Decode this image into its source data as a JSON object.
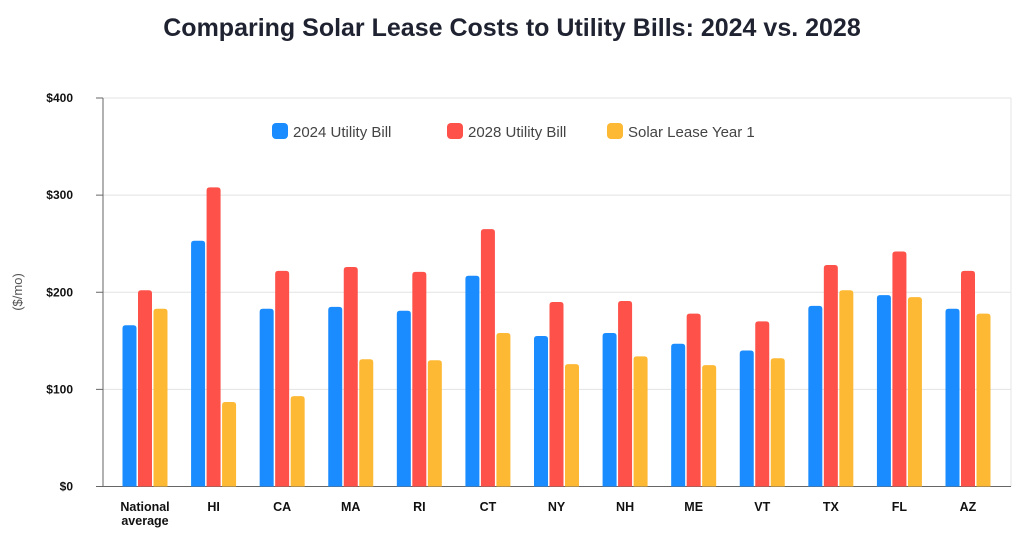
{
  "chart_data": {
    "type": "bar",
    "title": "Comparing Solar Lease Costs to Utility Bills: 2024 vs. 2028",
    "xlabel": "",
    "ylabel": "($/mo)",
    "ylim": [
      0,
      400
    ],
    "yticks": [
      0,
      100,
      200,
      300,
      400
    ],
    "ytick_labels": [
      "$0",
      "$100",
      "$200",
      "$300",
      "$400"
    ],
    "grid": true,
    "legend_position": "top",
    "categories": [
      [
        "National",
        "average"
      ],
      [
        "HI"
      ],
      [
        "CA"
      ],
      [
        "MA"
      ],
      [
        "RI"
      ],
      [
        "CT"
      ],
      [
        "NY"
      ],
      [
        "NH"
      ],
      [
        "ME"
      ],
      [
        "VT"
      ],
      [
        "TX"
      ],
      [
        "FL"
      ],
      [
        "AZ"
      ]
    ],
    "series": [
      {
        "name": "2024 Utility Bill",
        "color": "#1a8cff",
        "values": [
          166,
          253,
          183,
          185,
          181,
          217,
          155,
          158,
          147,
          140,
          186,
          197,
          183
        ]
      },
      {
        "name": "2028 Utility Bill",
        "color": "#fd514a",
        "values": [
          202,
          308,
          222,
          226,
          221,
          265,
          190,
          191,
          178,
          170,
          228,
          242,
          222
        ]
      },
      {
        "name": "Solar Lease Year 1",
        "color": "#fdb834",
        "values": [
          183,
          87,
          93,
          131,
          130,
          158,
          126,
          134,
          125,
          132,
          202,
          195,
          178
        ]
      }
    ]
  }
}
